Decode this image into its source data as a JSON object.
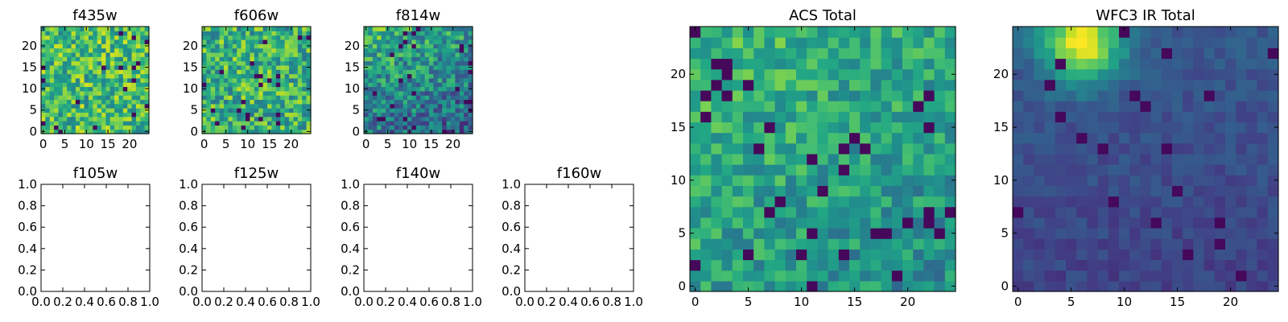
{
  "chart_data": [
    {
      "type": "heatmap",
      "title": "f435w",
      "colormap": "viridis",
      "grid": false,
      "xticks": [
        "0",
        "5",
        "10",
        "15",
        "20"
      ],
      "yticks": [
        "0",
        "5",
        "10",
        "15",
        "20"
      ],
      "xlim": [
        -0.5,
        24.5
      ],
      "ylim": [
        -0.5,
        24.5
      ],
      "nx": 25,
      "ny": 25,
      "mean": 0.68,
      "noise": 0.26,
      "gradient": [
        0.0,
        0.0,
        0.0
      ]
    },
    {
      "type": "heatmap",
      "title": "f606w",
      "colormap": "viridis",
      "grid": false,
      "xticks": [
        "0",
        "5",
        "10",
        "15",
        "20"
      ],
      "yticks": [
        "0",
        "5",
        "10",
        "15",
        "20"
      ],
      "xlim": [
        -0.5,
        24.5
      ],
      "ylim": [
        -0.5,
        24.5
      ],
      "nx": 25,
      "ny": 25,
      "mean": 0.64,
      "noise": 0.26,
      "gradient": [
        0.0,
        0.0,
        0.0
      ]
    },
    {
      "type": "heatmap",
      "title": "f814w",
      "colormap": "viridis",
      "grid": false,
      "xticks": [
        "0",
        "5",
        "10",
        "15",
        "20"
      ],
      "yticks": [
        "0",
        "5",
        "10",
        "15",
        "20"
      ],
      "xlim": [
        -0.5,
        24.5
      ],
      "ylim": [
        -0.5,
        24.5
      ],
      "nx": 25,
      "ny": 25,
      "mean": 0.48,
      "noise": 0.24,
      "gradient": [
        0.0,
        0.25,
        0.12
      ]
    },
    {
      "type": "heatmap",
      "title": "f105w",
      "empty": true,
      "xticks": [
        "0.0",
        "0.2",
        "0.4",
        "0.6",
        "0.8",
        "1.0"
      ],
      "yticks": [
        "0.0",
        "0.2",
        "0.4",
        "0.6",
        "0.8",
        "1.0"
      ],
      "xlim": [
        0,
        1
      ],
      "ylim": [
        0,
        1
      ]
    },
    {
      "type": "heatmap",
      "title": "f125w",
      "empty": true,
      "xticks": [
        "0.0",
        "0.2",
        "0.4",
        "0.6",
        "0.8",
        "1.0"
      ],
      "yticks": [
        "0.0",
        "0.2",
        "0.4",
        "0.6",
        "0.8",
        "1.0"
      ],
      "xlim": [
        0,
        1
      ],
      "ylim": [
        0,
        1
      ]
    },
    {
      "type": "heatmap",
      "title": "f140w",
      "empty": true,
      "xticks": [
        "0.0",
        "0.2",
        "0.4",
        "0.6",
        "0.8",
        "1.0"
      ],
      "yticks": [
        "0.0",
        "0.2",
        "0.4",
        "0.6",
        "0.8",
        "1.0"
      ],
      "xlim": [
        0,
        1
      ],
      "ylim": [
        0,
        1
      ]
    },
    {
      "type": "heatmap",
      "title": "f160w",
      "empty": true,
      "xticks": [
        "0.0",
        "0.2",
        "0.4",
        "0.6",
        "0.8",
        "1.0"
      ],
      "yticks": [
        "0.0",
        "0.2",
        "0.4",
        "0.6",
        "0.8",
        "1.0"
      ],
      "xlim": [
        0,
        1
      ],
      "ylim": [
        0,
        1
      ]
    },
    {
      "type": "heatmap",
      "title": "ACS Total",
      "colormap": "viridis",
      "grid": false,
      "xticks": [
        "0",
        "5",
        "10",
        "15",
        "20"
      ],
      "yticks": [
        "0",
        "5",
        "10",
        "15",
        "20"
      ],
      "xlim": [
        -0.5,
        24.5
      ],
      "ylim": [
        -0.5,
        24.5
      ],
      "nx": 25,
      "ny": 25,
      "mean": 0.58,
      "noise": 0.17,
      "gradient": [
        0.0,
        0.12,
        0.08
      ]
    },
    {
      "type": "heatmap",
      "title": "WFC3 IR Total",
      "colormap": "viridis",
      "grid": false,
      "xticks": [
        "0",
        "5",
        "10",
        "15",
        "20"
      ],
      "yticks": [
        "0",
        "5",
        "10",
        "15",
        "20"
      ],
      "xlim": [
        -0.5,
        24.5
      ],
      "ylim": [
        -0.5,
        24.5
      ],
      "nx": 25,
      "ny": 25,
      "mean": 0.24,
      "noise": 0.06,
      "gradient": [
        0.0,
        0.08,
        0.0
      ],
      "peak": {
        "x": 6,
        "y": 23,
        "amplitude": 0.72,
        "sigma": 2.6
      }
    }
  ]
}
